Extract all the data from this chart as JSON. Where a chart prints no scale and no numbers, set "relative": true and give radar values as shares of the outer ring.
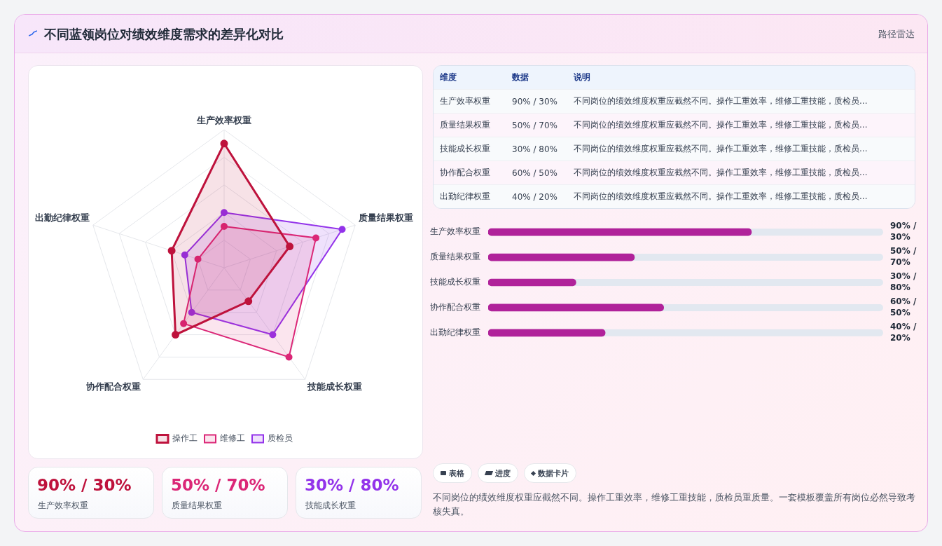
{
  "chart_data": [
    {
      "type": "other",
      "title": "不同蓝领岗位对绩效维度需求的差异化对比",
      "subtitle": "路径雷达"
    },
    {
      "type": "radar",
      "categories": [
        "生产效率权重",
        "质量结果权重",
        "技能成长权重",
        "协作配合权重",
        "出勤纪律权重"
      ],
      "relative": true,
      "legend": "bottom",
      "marker": "circle",
      "grid": true,
      "series": [
        {
          "name": "操作工",
          "color": "#be123c",
          "values": [
            0.9,
            0.5,
            0.3,
            0.6,
            0.4
          ]
        },
        {
          "name": "维修工",
          "color": "#db2777",
          "values": [
            0.3,
            0.7,
            0.8,
            0.5,
            0.2
          ]
        },
        {
          "name": "质检员",
          "color": "#9333ea",
          "values": [
            0.4,
            0.9,
            0.6,
            0.4,
            0.3
          ]
        }
      ]
    },
    {
      "type": "bar",
      "orientation": "horizontal",
      "xlim": [
        0,
        135
      ],
      "categories": [
        "生产效率权重",
        "质量结果权重",
        "技能成长权重",
        "协作配合权重",
        "出勤纪律权重"
      ],
      "values": [
        90,
        50,
        30,
        60,
        40
      ],
      "color": "#b0229a",
      "value_labels": [
        "90% / 30%",
        "50% / 70%",
        "30% / 80%",
        "60% / 50%",
        "40% / 20%"
      ]
    },
    {
      "type": "other",
      "categories": [
        "维度",
        "数据",
        "说明"
      ],
      "cell_labels": [
        [
          "生产效率权重",
          "90% / 30%",
          "不同岗位的绩效维度权重应截然不同。操作工重效率，维修工重技能，质检员..."
        ],
        [
          "质量结果权重",
          "50% / 70%",
          "不同岗位的绩效维度权重应截然不同。操作工重效率，维修工重技能，质检员..."
        ],
        [
          "技能成长权重",
          "30% / 80%",
          "不同岗位的绩效维度权重应截然不同。操作工重效率，维修工重技能，质检员..."
        ],
        [
          "协作配合权重",
          "60% / 50%",
          "不同岗位的绩效维度权重应截然不同。操作工重效率，维修工重技能，质检员..."
        ],
        [
          "出勤纪律权重",
          "40% / 20%",
          "不同岗位的绩效维度权重应截然不同。操作工重效率，维修工重技能，质检员..."
        ]
      ]
    },
    {
      "type": "other",
      "categories": [
        "生产效率权重",
        "质量结果权重",
        "技能成长权重"
      ],
      "value_labels": [
        "90% / 30%",
        "50% / 70%",
        "30% / 80%"
      ]
    },
    {
      "type": "other",
      "annotations": [
        "表格",
        "进度",
        "数据卡片",
        "不同岗位的绩效维度权重应截然不同。操作工重效率，维修工重技能，质检员重质量。一套模板覆盖所有岗位必然导致考核失真。"
      ]
    }
  ]
}
